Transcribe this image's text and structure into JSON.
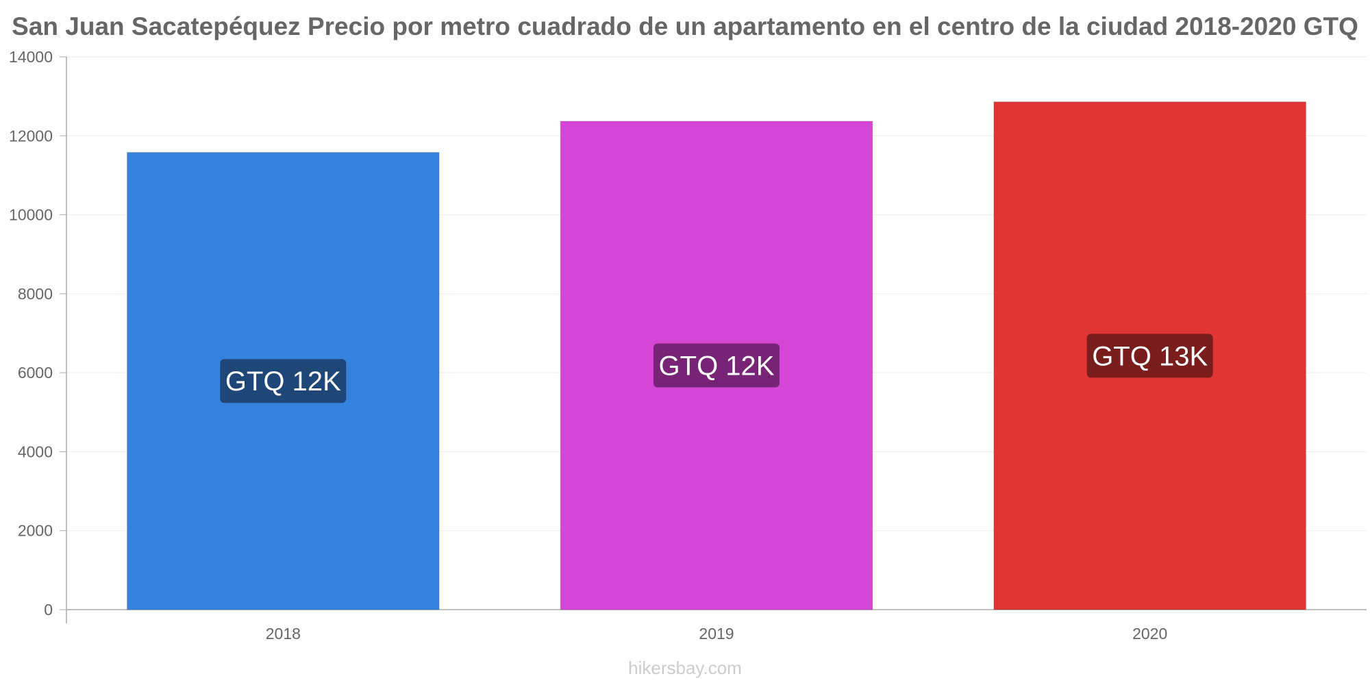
{
  "title": "San Juan Sacatepéquez Precio por metro cuadrado de un apartamento en el centro de la ciudad 2018-2020 GTQ",
  "watermark": "hikersbay.com",
  "chart_data": {
    "type": "bar",
    "title": "San Juan Sacatepéquez Precio por metro cuadrado de un apartamento en el centro de la ciudad 2018-2020 GTQ",
    "xlabel": "",
    "ylabel": "",
    "categories": [
      "2018",
      "2019",
      "2020"
    ],
    "values": [
      11580,
      12370,
      12860
    ],
    "data_labels": [
      "GTQ 12K",
      "GTQ 12K",
      "GTQ 13K"
    ],
    "colors": [
      "#3482dd",
      "#d546d5",
      "#e03535"
    ],
    "label_colors": [
      "#1e4677",
      "#772477",
      "#7a1d1d"
    ],
    "ylim": [
      0,
      14000
    ],
    "yticks": [
      0,
      2000,
      4000,
      6000,
      8000,
      10000,
      12000,
      14000
    ],
    "grid": true,
    "legend": "none"
  }
}
